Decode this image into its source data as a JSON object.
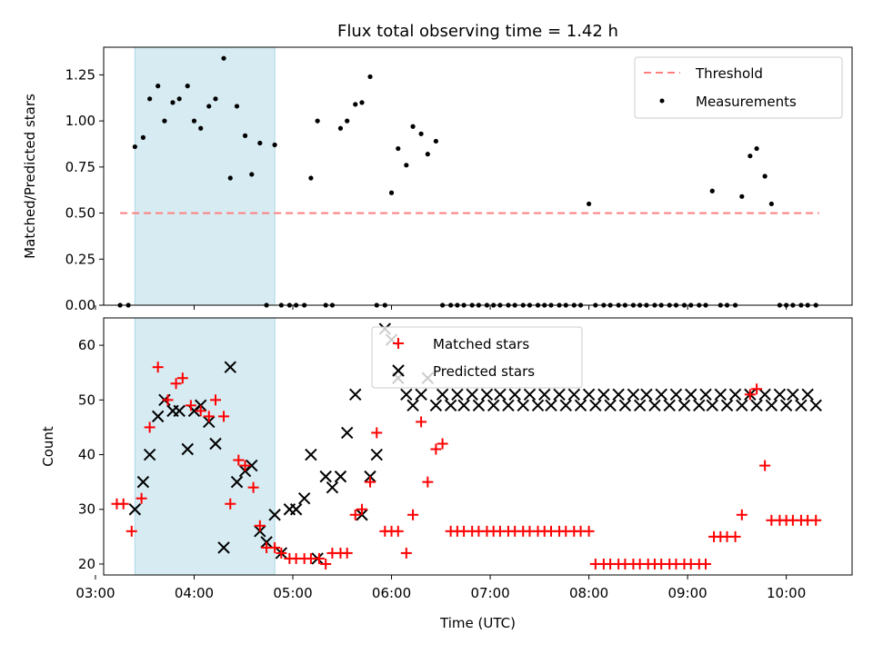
{
  "chart_data": [
    {
      "type": "scatter",
      "title": "Flux total observing time = 1.42 h",
      "xlabel": "",
      "ylabel": "Matched/Predicted stars",
      "x_unit": "hours UTC",
      "xlim": [
        "03:05",
        "10:40"
      ],
      "ylim": [
        0,
        1.4
      ],
      "yticks": [
        "0.00",
        "0.25",
        "0.50",
        "0.75",
        "1.00",
        "1.25"
      ],
      "grid": false,
      "legend_position": "top-right",
      "shaded_interval": [
        "03:24",
        "04:49"
      ],
      "threshold": {
        "name": "Threshold",
        "value": 0.5,
        "x_range": [
          "03:15",
          "10:20"
        ],
        "color": "#ff7f7f"
      },
      "series": [
        {
          "name": "Measurements",
          "color": "#000000",
          "x": [
            "03:15",
            "03:20",
            "03:24",
            "03:29",
            "03:33",
            "03:38",
            "03:42",
            "03:47",
            "03:51",
            "03:56",
            "04:00",
            "04:04",
            "04:09",
            "04:13",
            "04:18",
            "04:22",
            "04:26",
            "04:31",
            "04:35",
            "04:40",
            "04:44",
            "04:49",
            "04:53",
            "04:58",
            "05:02",
            "05:07",
            "05:11",
            "05:15",
            "05:20",
            "05:24",
            "05:29",
            "05:33",
            "05:38",
            "05:42",
            "05:47",
            "05:51",
            "05:56",
            "06:00",
            "06:04",
            "06:09",
            "06:13",
            "06:18",
            "06:22",
            "06:27",
            "06:31",
            "06:36",
            "06:40",
            "06:44",
            "06:49",
            "06:53",
            "06:58",
            "07:02",
            "07:06",
            "07:11",
            "07:15",
            "07:20",
            "07:24",
            "07:29",
            "07:33",
            "07:37",
            "07:42",
            "07:46",
            "07:51",
            "07:55",
            "08:00",
            "08:04",
            "08:09",
            "08:13",
            "08:18",
            "08:22",
            "08:27",
            "08:31",
            "08:35",
            "08:40",
            "08:44",
            "08:49",
            "08:53",
            "08:58",
            "09:02",
            "09:07",
            "09:11",
            "09:15",
            "09:20",
            "09:24",
            "09:29",
            "09:33",
            "09:38",
            "09:42",
            "09:47",
            "09:51",
            "09:56",
            "10:00",
            "10:04",
            "10:09",
            "10:13",
            "10:18"
          ],
          "y": [
            0,
            0,
            0.86,
            0.91,
            1.12,
            1.19,
            1.0,
            1.1,
            1.12,
            1.19,
            1.0,
            0.96,
            1.08,
            1.12,
            1.34,
            0.69,
            1.08,
            0.92,
            0.71,
            0.88,
            0,
            0.87,
            0,
            0,
            0,
            0,
            0.69,
            1.0,
            0,
            0,
            0.96,
            1.0,
            1.09,
            1.1,
            1.24,
            0,
            0,
            0.61,
            0.85,
            0.76,
            0.97,
            0.93,
            0.82,
            0.89,
            0,
            0,
            0,
            0,
            0,
            0,
            0,
            0,
            0,
            0,
            0,
            0,
            0,
            0,
            0,
            0,
            0,
            0,
            0,
            0,
            0.55,
            0,
            0,
            0,
            0,
            0,
            0,
            0,
            0,
            0,
            0,
            0,
            0,
            0,
            0,
            0,
            0,
            0.62,
            0,
            0,
            0,
            0.59,
            0.81,
            0.85,
            0.7,
            0.55,
            0,
            0,
            0,
            0,
            0,
            0
          ]
        }
      ]
    },
    {
      "type": "scatter",
      "title": "",
      "xlabel": "Time (UTC)",
      "ylabel": "Count",
      "x_unit": "hours UTC",
      "xlim": [
        "03:05",
        "10:40"
      ],
      "ylim": [
        18,
        65
      ],
      "xticks": [
        "03:00",
        "04:00",
        "05:00",
        "06:00",
        "07:00",
        "08:00",
        "09:00",
        "10:00"
      ],
      "yticks": [
        "20",
        "30",
        "40",
        "50",
        "60"
      ],
      "grid": false,
      "legend_position": "upper center",
      "shaded_interval": [
        "03:24",
        "04:49"
      ],
      "series": [
        {
          "name": "Matched stars",
          "marker": "+",
          "color": "#ff0000",
          "x": [
            "03:13",
            "03:17",
            "03:22",
            "03:28",
            "03:33",
            "03:38",
            "03:44",
            "03:49",
            "03:53",
            "03:58",
            "04:04",
            "04:09",
            "04:13",
            "04:18",
            "04:22",
            "04:27",
            "04:31",
            "04:36",
            "04:40",
            "04:44",
            "04:49",
            "04:53",
            "04:58",
            "05:02",
            "05:07",
            "05:11",
            "05:16",
            "05:20",
            "05:24",
            "05:29",
            "05:33",
            "05:38",
            "05:42",
            "05:47",
            "05:51",
            "05:56",
            "06:00",
            "06:04",
            "06:09",
            "06:13",
            "06:18",
            "06:22",
            "06:27",
            "06:31",
            "06:36",
            "06:40",
            "06:44",
            "06:49",
            "06:53",
            "06:58",
            "07:02",
            "07:06",
            "07:11",
            "07:15",
            "07:20",
            "07:24",
            "07:29",
            "07:33",
            "07:37",
            "07:42",
            "07:46",
            "07:51",
            "07:55",
            "08:00",
            "08:04",
            "08:09",
            "08:13",
            "08:18",
            "08:22",
            "08:27",
            "08:31",
            "08:36",
            "08:40",
            "08:44",
            "08:49",
            "08:53",
            "08:58",
            "09:02",
            "09:07",
            "09:11",
            "09:16",
            "09:20",
            "09:24",
            "09:29",
            "09:33",
            "09:38",
            "09:42",
            "09:47",
            "09:51",
            "09:56",
            "10:00",
            "10:04",
            "10:09",
            "10:13",
            "10:18"
          ],
          "y": [
            31,
            31,
            26,
            32,
            45,
            56,
            50,
            53,
            54,
            49,
            48,
            47,
            50,
            47,
            31,
            39,
            38,
            34,
            27,
            23,
            23,
            22,
            21,
            21,
            21,
            21,
            21,
            20,
            22,
            22,
            22,
            29,
            30,
            35,
            44,
            26,
            26,
            26,
            22,
            29,
            46,
            35,
            41,
            42,
            26,
            26,
            26,
            26,
            26,
            26,
            26,
            26,
            26,
            26,
            26,
            26,
            26,
            26,
            26,
            26,
            26,
            26,
            26,
            26,
            20,
            20,
            20,
            20,
            20,
            20,
            20,
            20,
            20,
            20,
            20,
            20,
            20,
            20,
            20,
            20,
            25,
            25,
            25,
            25,
            29,
            51,
            52,
            38,
            28,
            28,
            28,
            28,
            28,
            28,
            28
          ],
          "note_count_trimmed": true
        },
        {
          "name": "Predicted stars",
          "marker": "x",
          "color": "#000000",
          "x": [
            "03:24",
            "03:29",
            "03:33",
            "03:38",
            "03:42",
            "03:47",
            "03:51",
            "03:56",
            "04:00",
            "04:04",
            "04:09",
            "04:13",
            "04:18",
            "04:22",
            "04:26",
            "04:31",
            "04:35",
            "04:40",
            "04:44",
            "04:49",
            "04:53",
            "04:58",
            "05:02",
            "05:07",
            "05:11",
            "05:15",
            "05:20",
            "05:24",
            "05:29",
            "05:33",
            "05:38",
            "05:42",
            "05:47",
            "05:51",
            "05:56",
            "06:00",
            "06:04",
            "06:09",
            "06:13",
            "06:18",
            "06:22",
            "06:27",
            "06:31",
            "06:36",
            "06:40",
            "06:44",
            "06:49",
            "06:53",
            "06:58",
            "07:02",
            "07:06",
            "07:11",
            "07:15",
            "07:20",
            "07:24",
            "07:29",
            "07:33",
            "07:37",
            "07:42",
            "07:46",
            "07:51",
            "07:55",
            "08:00",
            "08:04",
            "08:09",
            "08:13",
            "08:18",
            "08:22",
            "08:27",
            "08:31",
            "08:35",
            "08:40",
            "08:44",
            "08:49",
            "08:53",
            "08:58",
            "09:02",
            "09:07",
            "09:11",
            "09:15",
            "09:20",
            "09:24",
            "09:29",
            "09:33",
            "09:38",
            "09:42",
            "09:47",
            "09:51",
            "09:56",
            "10:00",
            "10:04",
            "10:09",
            "10:13",
            "10:18"
          ],
          "y": [
            30,
            35,
            40,
            47,
            50,
            48,
            48,
            41,
            48,
            49,
            46,
            42,
            23,
            56,
            35,
            37,
            38,
            26,
            24,
            29,
            22,
            30,
            30,
            32,
            40,
            21,
            36,
            34,
            36,
            44,
            51,
            29,
            36,
            40,
            63,
            61,
            54,
            51,
            49,
            51,
            54,
            49,
            51,
            49,
            51,
            49,
            51,
            49,
            51,
            49,
            51,
            49,
            51,
            49,
            51,
            49,
            51,
            49,
            51,
            49,
            51,
            49,
            51,
            49,
            51,
            49,
            51,
            49,
            51,
            49,
            51,
            49,
            51,
            49,
            51,
            49,
            51,
            49,
            51,
            49,
            51,
            49,
            51,
            49,
            51,
            49,
            51,
            49,
            51,
            49,
            51,
            49,
            51,
            49
          ]
        }
      ]
    }
  ]
}
